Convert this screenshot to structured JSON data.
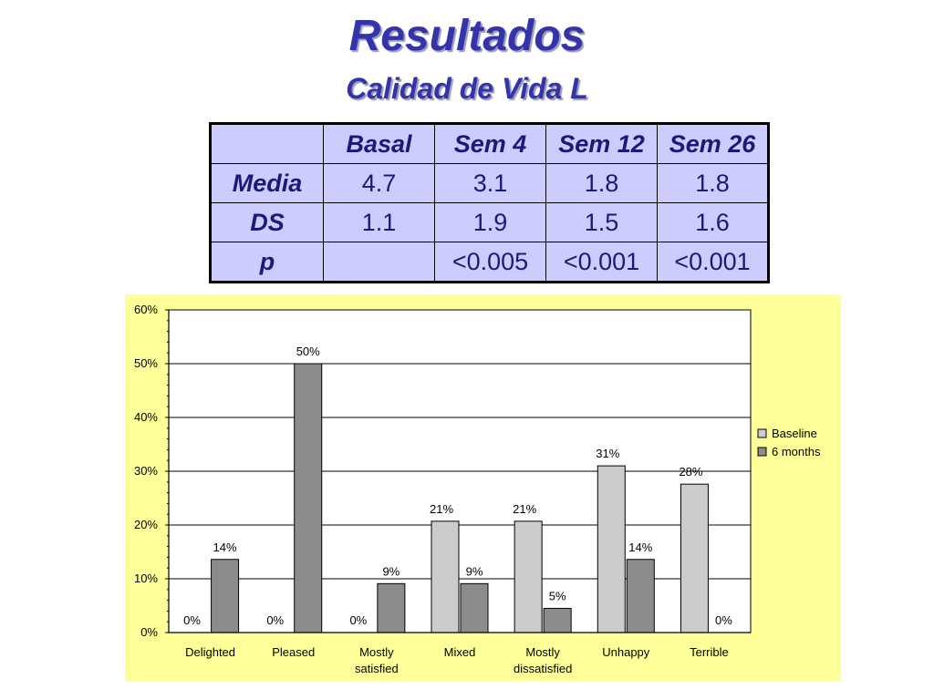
{
  "slide": {
    "title": "Resultados",
    "subtitle": "Calidad de Vida L"
  },
  "stats_table": {
    "headers": [
      "",
      "Basal",
      "Sem 4",
      "Sem 12",
      "Sem 26"
    ],
    "rows": [
      {
        "label": "Media",
        "cells": [
          "4.7",
          "3.1",
          "1.8",
          "1.8"
        ]
      },
      {
        "label": "DS",
        "cells": [
          "1.1",
          "1.9",
          "1.5",
          "1.6"
        ]
      },
      {
        "label": "p",
        "cells": [
          "",
          "<0.005",
          "<0.001",
          "<0.001"
        ]
      }
    ]
  },
  "chart_data": {
    "type": "bar",
    "title": "",
    "xlabel": "",
    "ylabel": "",
    "categories": [
      "Delighted",
      "Pleased",
      "Mostly satisfied",
      "Mixed",
      "Mostly dissatisfied",
      "Unhappy",
      "Terrible"
    ],
    "category_lines": [
      [
        "Delighted"
      ],
      [
        "Pleased"
      ],
      [
        "Mostly",
        "satisfied"
      ],
      [
        "Mixed"
      ],
      [
        "Mostly",
        "dissatisfied"
      ],
      [
        "Unhappy"
      ],
      [
        "Terrible"
      ]
    ],
    "series": [
      {
        "name": "Baseline",
        "color": "#cccccc",
        "values": [
          0,
          0,
          0,
          20.7,
          20.7,
          31,
          27.6
        ],
        "labels": [
          "0%",
          "0%",
          "0%",
          "21%",
          "21%",
          "31%",
          "28%"
        ]
      },
      {
        "name": "6 months",
        "color": "#8c8c8c",
        "values": [
          13.6,
          50,
          9.1,
          9.1,
          4.5,
          13.6,
          0
        ],
        "labels": [
          "14%",
          "50%",
          "9%",
          "9%",
          "5%",
          "14%",
          "0%"
        ]
      }
    ],
    "ylim": [
      0,
      60
    ],
    "yticks": [
      0,
      10,
      20,
      30,
      40,
      50,
      60
    ],
    "ytick_labels": [
      "0%",
      "10%",
      "20%",
      "30%",
      "40%",
      "50%",
      "60%"
    ],
    "grid": true,
    "legend": "right",
    "plot_background": "#ffffff",
    "chart_background": "#ffff99"
  }
}
